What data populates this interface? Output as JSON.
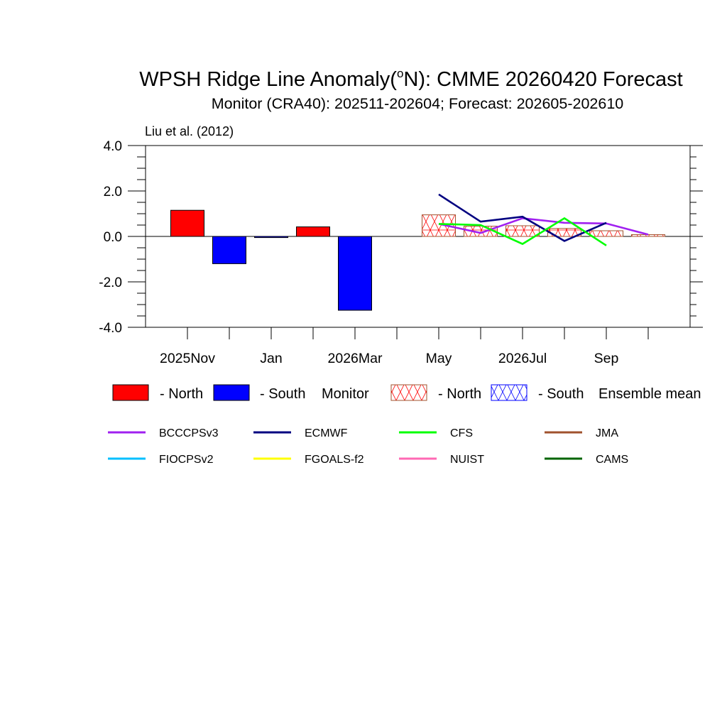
{
  "chart_data": {
    "type": "bar",
    "title_main": "WPSH Ridge Line Anomaly(",
    "title_sup": "o",
    "title_rest": "N): CMME 20260420 Forecast",
    "subtitle": "Monitor (CRA40): 202511-202604; Forecast: 202605-202610",
    "reference": "Liu et al. (2012)",
    "ylim": [
      -4,
      4
    ],
    "y_ticks": [
      4,
      2,
      0,
      -2,
      -4
    ],
    "y_tick_labels": [
      "4.0",
      "2.0",
      "0.0",
      "-2.0",
      "-4.0"
    ],
    "n_months": 12,
    "x_tick_labels": [
      {
        "index": 0,
        "label": "2025Nov"
      },
      {
        "index": 2,
        "label": "Jan"
      },
      {
        "index": 4,
        "label": "2026Mar"
      },
      {
        "index": 6,
        "label": "May"
      },
      {
        "index": 8,
        "label": "2026Jul"
      },
      {
        "index": 10,
        "label": "Sep"
      }
    ],
    "monitor": {
      "months": [
        "2025-11",
        "2025-12",
        "2026-01",
        "2026-02",
        "2026-03",
        "2026-04"
      ],
      "values": [
        1.15,
        -1.2,
        -0.05,
        0.42,
        -3.25,
        0.0
      ]
    },
    "ensemble_mean": {
      "months": [
        "2026-05",
        "2026-06",
        "2026-07",
        "2026-08",
        "2026-09",
        "2026-10"
      ],
      "values": [
        0.95,
        0.45,
        0.47,
        0.35,
        0.25,
        0.08
      ]
    },
    "series": [
      {
        "name": "BCCCPSv3",
        "color": "#a020f0",
        "values": [
          0.55,
          0.15,
          0.8,
          0.6,
          0.57,
          0.08
        ]
      },
      {
        "name": "ECMWF",
        "color": "#000080",
        "values": [
          1.85,
          0.65,
          0.87,
          -0.2,
          0.6,
          null
        ]
      },
      {
        "name": "CFS",
        "color": "#00ff00",
        "values": [
          0.55,
          0.5,
          -0.33,
          0.8,
          -0.4,
          null
        ]
      },
      {
        "name": "JMA",
        "color": "#a0522d",
        "values": []
      },
      {
        "name": "FIOCPSv2",
        "color": "#00bfff",
        "values": []
      },
      {
        "name": "FGOALS-f2",
        "color": "#ffff00",
        "values": []
      },
      {
        "name": "NUIST",
        "color": "#ff69b4",
        "values": []
      },
      {
        "name": "CAMS",
        "color": "#006400",
        "values": []
      }
    ],
    "legend_bars": [
      {
        "label": "- North",
        "color": "#ff0000",
        "hatched": false
      },
      {
        "label": "- South",
        "color": "#0000ff",
        "hatched": false
      },
      {
        "label": "Monitor",
        "group": true
      },
      {
        "label": "- North",
        "color": "#ff0000",
        "hatched": true
      },
      {
        "label": "- South",
        "color": "#0000ff",
        "hatched": true
      },
      {
        "label": "Ensemble mean",
        "group": true
      }
    ],
    "colors": {
      "north": "#ff0000",
      "south": "#0000ff"
    }
  }
}
